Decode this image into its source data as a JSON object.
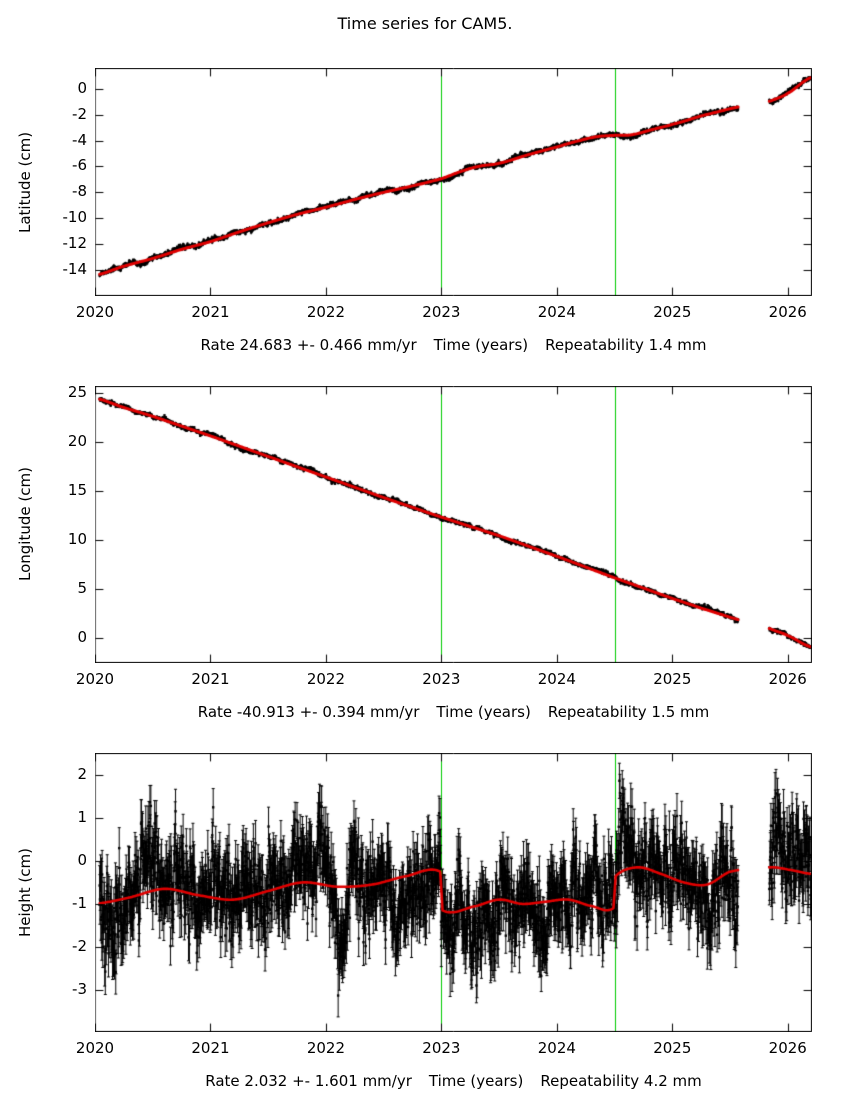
{
  "title": "Time series for CAM5.",
  "colors": {
    "background": "#ffffff",
    "points": "#000000",
    "trend_line": "#e00000",
    "event_line": "#00cc00",
    "axis": "#000000"
  },
  "chart_data": [
    {
      "type": "scatter",
      "name": "latitude",
      "ylabel": "Latitude (cm)",
      "xlabel_rate": "Rate 24.683 +- 0.466 mm/yr",
      "xlabel_time": "Time (years)",
      "xlabel_repeatability": "Repeatability 1.4 mm",
      "rate_mm_per_yr": 24.683,
      "rate_uncertainty_mm_per_yr": 0.466,
      "repeatability_mm": 1.4,
      "xlim": [
        2020,
        2026.21
      ],
      "ylim": [
        -16.0,
        1.6
      ],
      "xticks": [
        2020,
        2021,
        2022,
        2023,
        2024,
        2025,
        2026
      ],
      "yticks": [
        0,
        -2,
        -4,
        -6,
        -8,
        -10,
        -12,
        -14
      ],
      "event_lines_x": [
        2023.0,
        2024.5
      ],
      "data_start": 2020.04,
      "data_end": 2026.2,
      "gaps": [
        [
          2025.57,
          2025.84
        ]
      ],
      "sample_interval_years": 0.00274,
      "noise_sigma_cm": 0.09,
      "error_bar_cm": 0.12,
      "error_caps": false,
      "trend_width": 3,
      "seed": 11,
      "trend": {
        "x": [
          2020.0,
          2020.25,
          2020.5,
          2020.75,
          2021.0,
          2021.25,
          2021.5,
          2021.75,
          2022.0,
          2022.25,
          2022.5,
          2022.75,
          2023.0,
          2023.2,
          2023.35,
          2023.5,
          2023.75,
          2024.0,
          2024.2,
          2024.35,
          2024.5,
          2024.65,
          2024.85,
          2025.0,
          2025.25,
          2025.55,
          2025.85,
          2026.0,
          2026.2
        ],
        "y": [
          -14.4,
          -13.7,
          -13.1,
          -12.4,
          -11.8,
          -11.05,
          -10.35,
          -9.7,
          -9.15,
          -8.55,
          -8.0,
          -7.5,
          -6.95,
          -6.3,
          -5.95,
          -5.75,
          -5.1,
          -4.5,
          -4.0,
          -3.7,
          -3.6,
          -3.55,
          -3.1,
          -2.75,
          -2.1,
          -1.45,
          -0.95,
          -0.35,
          0.85
        ]
      }
    },
    {
      "type": "scatter",
      "name": "longitude",
      "ylabel": "Longitude (cm)",
      "xlabel_rate": "Rate -40.913 +- 0.394 mm/yr",
      "xlabel_time": "Time (years)",
      "xlabel_repeatability": "Repeatability 1.5 mm",
      "rate_mm_per_yr": -40.913,
      "rate_uncertainty_mm_per_yr": 0.394,
      "repeatability_mm": 1.5,
      "xlim": [
        2020,
        2026.21
      ],
      "ylim": [
        -2.6,
        25.7
      ],
      "xticks": [
        2020,
        2021,
        2022,
        2023,
        2024,
        2025,
        2026
      ],
      "yticks": [
        0,
        5,
        10,
        15,
        20,
        25
      ],
      "event_lines_x": [
        2023.0,
        2024.5
      ],
      "data_start": 2020.04,
      "data_end": 2026.2,
      "gaps": [
        [
          2025.57,
          2025.84
        ]
      ],
      "sample_interval_years": 0.00274,
      "noise_sigma_cm": 0.11,
      "error_bar_cm": 0.13,
      "error_caps": false,
      "trend_width": 3,
      "seed": 22,
      "trend": {
        "x": [
          2020.0,
          2020.25,
          2020.5,
          2020.75,
          2021.0,
          2021.25,
          2021.5,
          2021.75,
          2022.0,
          2022.25,
          2022.5,
          2022.75,
          2023.0,
          2023.25,
          2023.5,
          2023.75,
          2024.0,
          2024.25,
          2024.5,
          2024.75,
          2025.0,
          2025.25,
          2025.55,
          2025.85,
          2026.0,
          2026.2
        ],
        "y": [
          24.45,
          23.5,
          22.6,
          21.6,
          20.6,
          19.55,
          18.5,
          17.45,
          16.4,
          15.35,
          14.3,
          13.3,
          12.3,
          11.35,
          10.4,
          9.35,
          8.3,
          7.2,
          6.1,
          5.05,
          4.0,
          3.0,
          1.9,
          0.9,
          0.2,
          -0.95
        ]
      }
    },
    {
      "type": "scatter",
      "name": "height",
      "ylabel": "Height (cm)",
      "xlabel_rate": "Rate 2.032 +- 1.601 mm/yr",
      "xlabel_time": "Time (years)",
      "xlabel_repeatability": "Repeatability 4.2 mm",
      "rate_mm_per_yr": 2.032,
      "rate_uncertainty_mm_per_yr": 1.601,
      "repeatability_mm": 4.2,
      "xlim": [
        2020,
        2026.21
      ],
      "ylim": [
        -3.98,
        2.51
      ],
      "xticks": [
        2020,
        2021,
        2022,
        2023,
        2024,
        2025,
        2026
      ],
      "yticks": [
        2,
        1,
        0,
        -1,
        -2,
        -3
      ],
      "event_lines_x": [
        2023.0,
        2024.5
      ],
      "data_start": 2020.04,
      "data_end": 2026.2,
      "gaps": [
        [
          2025.57,
          2025.84
        ]
      ],
      "sample_interval_years": 0.00274,
      "noise_sigma_cm": 0.55,
      "error_bar_cm": 0.45,
      "error_caps": true,
      "trend_width": 2.6,
      "seed": 33,
      "trend": {
        "x": [
          2020.0,
          2020.3,
          2020.6,
          2020.9,
          2021.2,
          2021.5,
          2021.8,
          2022.1,
          2022.4,
          2022.7,
          2022.99,
          2023.01,
          2023.3,
          2023.5,
          2023.7,
          2023.9,
          2024.1,
          2024.3,
          2024.49,
          2024.51,
          2024.7,
          2024.9,
          2025.1,
          2025.3,
          2025.5,
          2025.85,
          2026.0,
          2026.2
        ],
        "y": [
          -1.0,
          -0.85,
          -0.65,
          -0.8,
          -0.9,
          -0.7,
          -0.5,
          -0.6,
          -0.55,
          -0.35,
          -0.25,
          -1.15,
          -1.05,
          -0.9,
          -1.0,
          -0.95,
          -0.9,
          -1.05,
          -1.1,
          -0.35,
          -0.15,
          -0.3,
          -0.5,
          -0.55,
          -0.25,
          -0.15,
          -0.2,
          -0.3
        ]
      }
    }
  ]
}
